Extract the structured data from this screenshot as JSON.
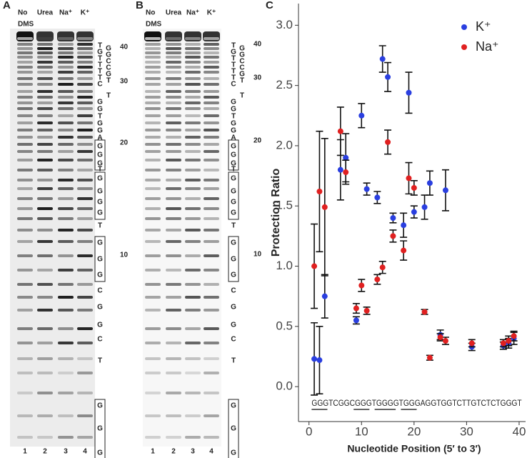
{
  "gel_panels": [
    {
      "label": "A",
      "lanes": [
        [
          "No",
          "DMS"
        ],
        [
          "Urea"
        ],
        [
          "Na⁺"
        ],
        [
          "K⁺"
        ]
      ],
      "lane_numbers": [
        "1",
        "2",
        "3",
        "4"
      ],
      "sequence": [
        "T",
        "G",
        "T",
        "T",
        "T",
        "T",
        "C",
        "G",
        "G",
        "T",
        "G",
        "G",
        "A",
        "G",
        "G",
        "G",
        "T",
        "G",
        "G",
        "G",
        "G",
        "T",
        "G",
        "G",
        "G",
        "C",
        "G",
        "G",
        "C",
        "T",
        "G",
        "G",
        "G"
      ],
      "side_sequence": [
        "G",
        "G",
        "C",
        "C",
        "G",
        "T",
        "T"
      ],
      "positions": [
        "40",
        "30",
        "20",
        "10"
      ]
    },
    {
      "label": "B",
      "lanes": [
        [
          "No",
          "DMS"
        ],
        [
          "Urea"
        ],
        [
          "Na⁺"
        ],
        [
          "K⁺"
        ]
      ],
      "lane_numbers": [
        "1",
        "2",
        "3",
        "4"
      ],
      "sequence": [
        "T",
        "G",
        "T",
        "T",
        "T",
        "T",
        "C",
        "G",
        "G",
        "T",
        "G",
        "G",
        "A",
        "G",
        "G",
        "G",
        "T",
        "G",
        "G",
        "G",
        "G",
        "T",
        "G",
        "G",
        "G",
        "C",
        "G",
        "G",
        "C",
        "T",
        "G",
        "G",
        "G"
      ],
      "side_sequence": [
        "G",
        "G",
        "C",
        "C",
        "G",
        "T",
        "T"
      ],
      "positions": [
        "40",
        "30",
        "20",
        "10"
      ]
    }
  ],
  "chart_data": {
    "type": "scatter",
    "label": "C",
    "x_label": "Nucleotide Position (5′ to 3′)",
    "y_label": "Protection Ratio",
    "xlim": [
      -2,
      41.5
    ],
    "xticks": [
      0,
      10,
      20,
      30,
      40
    ],
    "ylim": [
      -0.29,
      3.18
    ],
    "yticks": [
      {
        "value": 0,
        "label": "0.0"
      },
      0.5,
      {
        "value": 1,
        "label": "1.0"
      },
      1.5,
      {
        "value": 2,
        "label": "2.0"
      },
      2.5,
      {
        "value": 3,
        "label": "3.0"
      }
    ],
    "legend": "top-right",
    "annotation": "GGGTCGGCGGGTGGGGTGGGAGGTGGTCTTGTCTCTGGGT",
    "series": [
      {
        "name": "K⁺",
        "color": "#2a3fe0",
        "x": [
          1,
          2,
          3,
          6,
          7,
          9,
          10,
          11,
          13,
          14,
          15,
          16,
          18,
          19,
          20,
          22,
          23,
          25,
          26,
          31,
          37,
          38,
          39
        ],
        "values": [
          0.23,
          0.22,
          0.75,
          1.8,
          1.9,
          0.55,
          2.25,
          1.64,
          1.57,
          2.72,
          2.57,
          1.4,
          1.34,
          2.44,
          1.45,
          1.49,
          1.69,
          0.43,
          1.63,
          0.33,
          0.34,
          0.36,
          0.4
        ],
        "errors": [
          0.3,
          0.28,
          0.18,
          0.25,
          0.2,
          0.03,
          0.1,
          0.05,
          0.05,
          0.11,
          0.12,
          0.04,
          0.1,
          0.17,
          0.05,
          0.1,
          0.1,
          0.04,
          0.17,
          0.03,
          0.03,
          0.04,
          0.05
        ]
      },
      {
        "name": "Na⁺",
        "color": "#e02020",
        "x": [
          1,
          2,
          3,
          6,
          7,
          9,
          10,
          11,
          13,
          14,
          15,
          16,
          18,
          19,
          20,
          22,
          23,
          25,
          26,
          31,
          37,
          38,
          39
        ],
        "values": [
          1.0,
          1.62,
          1.49,
          2.12,
          1.78,
          0.65,
          0.84,
          0.63,
          0.89,
          0.99,
          2.03,
          1.25,
          1.13,
          1.73,
          1.65,
          0.62,
          0.24,
          0.41,
          0.38,
          0.36,
          0.36,
          0.38,
          0.42
        ],
        "errors": [
          0.35,
          0.5,
          0.57,
          0.2,
          0.1,
          0.04,
          0.05,
          0.03,
          0.04,
          0.05,
          0.1,
          0.05,
          0.08,
          0.13,
          0.06,
          0.02,
          0.02,
          0.03,
          0.03,
          0.03,
          0.03,
          0.04,
          0.04
        ]
      }
    ]
  }
}
